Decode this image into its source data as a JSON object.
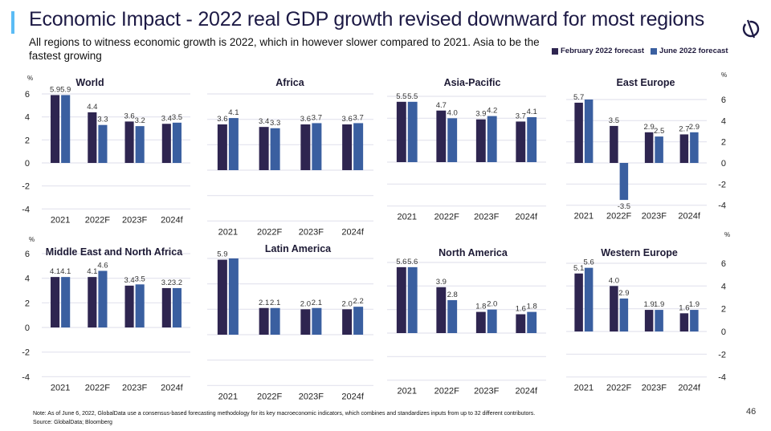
{
  "header": {
    "title": "Economic Impact - 2022 real GDP growth revised downward for most regions",
    "subtitle": "All regions to witness economic growth is 2022, which in however slower compared to 2021. Asia to be the fastest growing",
    "logo_icon": "globaldata-logo-icon"
  },
  "legend": {
    "items": [
      {
        "label": "February 2022 forecast",
        "color": "#2e2550"
      },
      {
        "label": "June 2022 forecast",
        "color": "#3a5fa0"
      }
    ]
  },
  "footer": {
    "note": "Note: As of June 6, 2022, GlobalData use a consensus-based forecasting methodology for its key macroeconomic indicators, which combines and standardizes inputs from up to 32 different contributors.",
    "source": "Source: GlobalData; Bloomberg",
    "page_number": "46"
  },
  "colors": {
    "feb": "#2e2550",
    "june": "#3a5fa0",
    "grid": "#e3e3ee",
    "accent": "#5bbcf5"
  },
  "chart_data": [
    {
      "type": "bar",
      "title": "World",
      "ylabel": "%",
      "ylim": [
        -4,
        6
      ],
      "yticks": [
        -4,
        -2,
        0,
        2,
        4,
        6
      ],
      "grid": true,
      "categories": [
        "2021",
        "2022F",
        "2023F",
        "2024f"
      ],
      "series": [
        {
          "name": "February 2022 forecast",
          "values": [
            5.9,
            4.4,
            3.6,
            3.4
          ],
          "labels": [
            "5.9",
            "4.4",
            "3.6",
            "3.4"
          ]
        },
        {
          "name": "June 2022 forecast",
          "values": [
            5.9,
            3.3,
            3.2,
            3.5
          ],
          "labels": [
            "5.9",
            "3.3",
            "3.2",
            "3.5"
          ]
        }
      ]
    },
    {
      "type": "bar",
      "title": "Africa",
      "ylabel": "",
      "ylim": [
        -4,
        6
      ],
      "yticks": [],
      "grid": true,
      "categories": [
        "2021",
        "2022F",
        "2023F",
        "2024f"
      ],
      "series": [
        {
          "name": "February 2022 forecast",
          "values": [
            3.6,
            3.4,
            3.6,
            3.6
          ],
          "labels": [
            "3.6",
            "3.4",
            "3.6",
            "3.6"
          ]
        },
        {
          "name": "June 2022 forecast",
          "values": [
            4.1,
            3.3,
            3.7,
            3.7
          ],
          "labels": [
            "4.1",
            "3.3",
            "3.7",
            "3.7"
          ]
        }
      ]
    },
    {
      "type": "bar",
      "title": "Asia-Pacific",
      "ylabel": "",
      "ylim": [
        -4,
        6
      ],
      "yticks": [],
      "grid": true,
      "categories": [
        "2021",
        "2022F",
        "2023F",
        "2024f"
      ],
      "series": [
        {
          "name": "February 2022 forecast",
          "values": [
            5.5,
            4.7,
            3.9,
            3.7
          ],
          "labels": [
            "5.5",
            "4.7",
            "3.9",
            "3.7"
          ]
        },
        {
          "name": "June 2022 forecast",
          "values": [
            5.5,
            4.0,
            4.2,
            4.1
          ],
          "labels": [
            "5.5",
            "4.0",
            "4.2",
            "4.1"
          ]
        }
      ]
    },
    {
      "type": "bar",
      "title": "East Europe",
      "ylabel": "%",
      "ylim": [
        -4,
        6
      ],
      "yticks": [
        -4,
        -2,
        0,
        2,
        4,
        6
      ],
      "grid": true,
      "categories": [
        "2021",
        "2022F",
        "2023F",
        "2024f"
      ],
      "series": [
        {
          "name": "February 2022 forecast",
          "values": [
            5.7,
            3.5,
            2.9,
            2.7
          ],
          "labels": [
            "5.7",
            "3.5",
            "2.9",
            "2.7"
          ]
        },
        {
          "name": "June 2022 forecast",
          "values": [
            6.0,
            -3.5,
            2.5,
            2.9
          ],
          "labels": [
            "",
            "-3.5",
            "2.5",
            "2.9"
          ]
        }
      ]
    },
    {
      "type": "bar",
      "title": "Middle East and North Africa",
      "ylabel": "%",
      "ylim": [
        -4,
        6
      ],
      "yticks": [
        -4,
        -2,
        0,
        2,
        4,
        6
      ],
      "grid": true,
      "categories": [
        "2021",
        "2022F",
        "2023F",
        "2024f"
      ],
      "series": [
        {
          "name": "February 2022 forecast",
          "values": [
            4.1,
            4.1,
            3.4,
            3.2
          ],
          "labels": [
            "4.1",
            "4.1",
            "3.4",
            "3.2"
          ]
        },
        {
          "name": "June 2022 forecast",
          "values": [
            4.1,
            4.6,
            3.5,
            3.2
          ],
          "labels": [
            "4.1",
            "4.6",
            "3.5",
            "3.2"
          ]
        }
      ]
    },
    {
      "type": "bar",
      "title": "Latin America",
      "ylabel": "",
      "ylim": [
        -4,
        6
      ],
      "yticks": [],
      "grid": true,
      "categories": [
        "2021",
        "2022F",
        "2023F",
        "2024f"
      ],
      "series": [
        {
          "name": "February 2022 forecast",
          "values": [
            5.9,
            2.1,
            2.0,
            2.0
          ],
          "labels": [
            "5.9",
            "2.1",
            "2.0",
            "2.0"
          ]
        },
        {
          "name": "June 2022 forecast",
          "values": [
            6.0,
            2.1,
            2.1,
            2.2
          ],
          "labels": [
            "",
            "2.1",
            "2.1",
            "2.2"
          ]
        }
      ]
    },
    {
      "type": "bar",
      "title": "North America",
      "ylabel": "",
      "ylim": [
        -4,
        6
      ],
      "yticks": [],
      "grid": true,
      "categories": [
        "2021",
        "2022F",
        "2023F",
        "2024f"
      ],
      "series": [
        {
          "name": "February 2022 forecast",
          "values": [
            5.6,
            3.9,
            1.8,
            1.6
          ],
          "labels": [
            "5.6",
            "3.9",
            "1.8",
            "1.6"
          ]
        },
        {
          "name": "June 2022 forecast",
          "values": [
            5.6,
            2.8,
            2.0,
            1.8
          ],
          "labels": [
            "5.6",
            "2.8",
            "2.0",
            "1.8"
          ]
        }
      ]
    },
    {
      "type": "bar",
      "title": "Western Europe",
      "ylabel": "%",
      "ylim": [
        -4,
        6
      ],
      "yticks": [
        -4,
        -2,
        0,
        2,
        4,
        6
      ],
      "grid": true,
      "categories": [
        "2021",
        "2022F",
        "2023F",
        "2024f"
      ],
      "series": [
        {
          "name": "February 2022 forecast",
          "values": [
            5.1,
            4.0,
            1.9,
            1.6
          ],
          "labels": [
            "5.1",
            "4.0",
            "1.9",
            "1.6"
          ]
        },
        {
          "name": "June 2022 forecast",
          "values": [
            5.6,
            2.9,
            1.9,
            1.9
          ],
          "labels": [
            "5.6",
            "2.9",
            "1.9",
            "1.9"
          ]
        }
      ]
    }
  ]
}
